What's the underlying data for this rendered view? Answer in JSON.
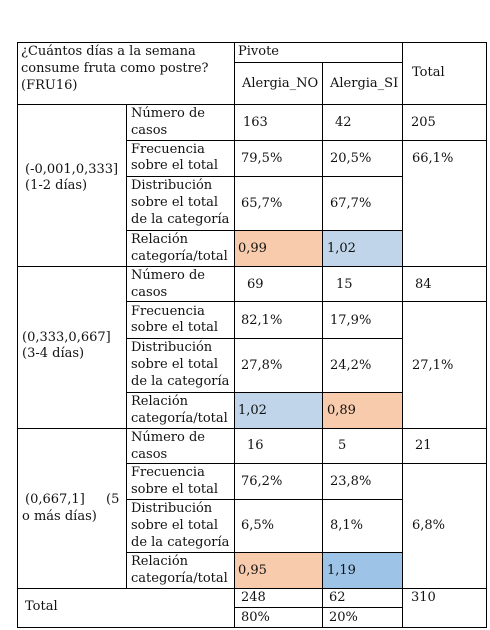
{
  "header": {
    "question_l1": "¿Cuántos días a la semana",
    "question_l2": "consume fruta como postre?",
    "question_l3": "(FRU16)",
    "pivot": "Pivote",
    "col_no": "Alergia_NO",
    "col_si": "Alergia_SI",
    "col_total": "Total"
  },
  "groups": [
    {
      "label_l1": "(-0,001,0,333]",
      "label_l2": "(1-2 días)",
      "label_l3": "",
      "casos": {
        "no": "163",
        "si": "42",
        "total": "205"
      },
      "frecuencia": {
        "no": "79,5%",
        "si": "20,5%"
      },
      "distribucion": {
        "no": "65,7%",
        "si": "67,7%",
        "total": "66,1%"
      },
      "relacion": {
        "no": "0,99",
        "si": "1,02",
        "no_color": "#f7cbac",
        "si_color": "#c0d5ea"
      }
    },
    {
      "label_l1": "(0,333,0,667]",
      "label_l2": "(3-4 días)",
      "label_l3": "",
      "casos": {
        "no": "69",
        "si": "15",
        "total": "84"
      },
      "frecuencia": {
        "no": "82,1%",
        "si": "17,9%"
      },
      "distribucion": {
        "no": "27,8%",
        "si": "24,2%",
        "total": "27,1%"
      },
      "relacion": {
        "no": "1,02",
        "si": "0,89",
        "no_color": "#c0d5ea",
        "si_color": "#f7cbac"
      }
    },
    {
      "label_l1": "(0,667,1]",
      "label_l2": "(5",
      "label_l3": "o más días)",
      "casos": {
        "no": "16",
        "si": "5",
        "total": "21"
      },
      "frecuencia": {
        "no": "76,2%",
        "si": "23,8%"
      },
      "distribucion": {
        "no": "6,5%",
        "si": "8,1%",
        "total": "6,8%"
      },
      "relacion": {
        "no": "0,95",
        "si": "1,19",
        "no_color": "#f7cbac",
        "si_color": "#9dc3e6"
      }
    }
  ],
  "row_labels": {
    "casos_l1": "Número de",
    "casos_l2": "casos",
    "frec_l1": "Frecuencia",
    "frec_l2": "sobre el total",
    "dist_l1": "Distribución",
    "dist_l2": "sobre el total",
    "dist_l3": "de la categoría",
    "rel_l1": "Relación",
    "rel_l2": "categoría/total"
  },
  "total_row": {
    "label": "Total",
    "no_count": "248",
    "si_count": "62",
    "total": "310",
    "no_pct": "80%",
    "si_pct": "20%"
  }
}
